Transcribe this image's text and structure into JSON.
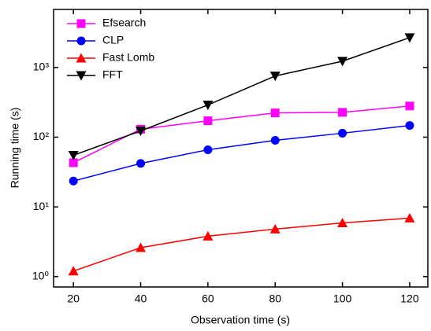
{
  "chart_data": {
    "type": "line",
    "x_label": "Observation time (s)",
    "y_label": "Running time (s)",
    "x": [
      20,
      40,
      60,
      80,
      100,
      120
    ],
    "series": [
      {
        "name": "Efsearch",
        "color": "#ff00ff",
        "marker": "square",
        "values": [
          43,
          130,
          172,
          223,
          227,
          280
        ]
      },
      {
        "name": "CLP",
        "color": "#0000ff",
        "marker": "circle",
        "values": [
          23.5,
          42,
          66,
          90,
          114,
          147
        ]
      },
      {
        "name": "Fast Lomb",
        "color": "#ff0000",
        "marker": "triangle-up",
        "values": [
          1.2,
          2.6,
          3.8,
          4.8,
          5.9,
          6.9
        ]
      },
      {
        "name": "FFT",
        "color": "#000000",
        "marker": "triangle-down",
        "values": [
          55,
          123,
          290,
          755,
          1230,
          2680
        ]
      }
    ],
    "xlim": [
      14.1,
      125.4
    ],
    "xticks": [
      20,
      40,
      60,
      80,
      100,
      120
    ],
    "ylim": [
      0.71,
      6800
    ],
    "yscale": "log",
    "yticks": [
      {
        "value": 1,
        "label": "10⁰"
      },
      {
        "value": 10,
        "label": "10¹"
      },
      {
        "value": 100,
        "label": "10²"
      },
      {
        "value": 1000,
        "label": "10³"
      }
    ],
    "legend": "upper-left"
  }
}
